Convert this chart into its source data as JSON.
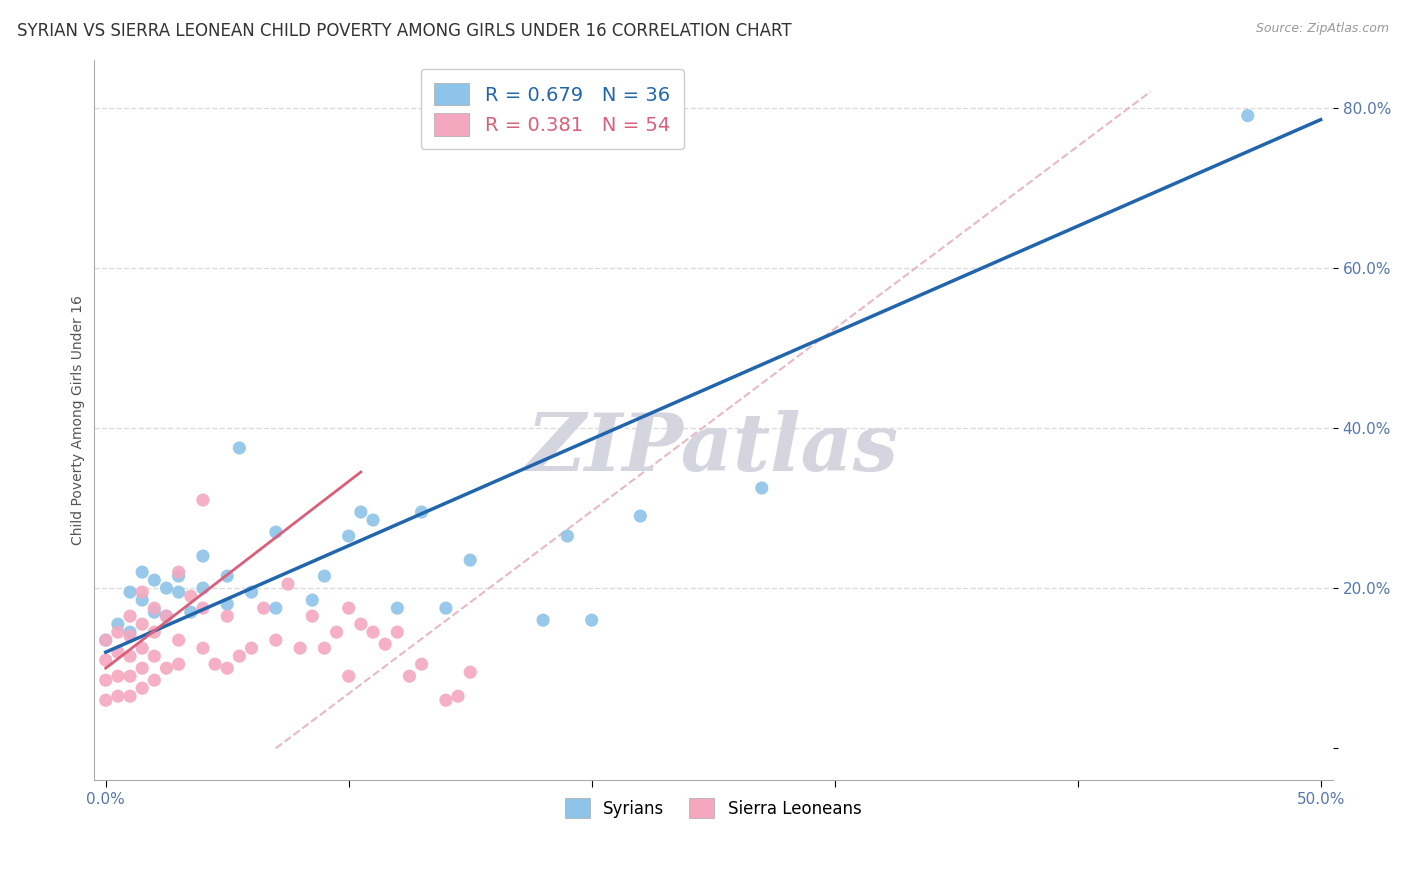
{
  "title": "SYRIAN VS SIERRA LEONEAN CHILD POVERTY AMONG GIRLS UNDER 16 CORRELATION CHART",
  "source": "Source: ZipAtlas.com",
  "ylabel": "Child Poverty Among Girls Under 16",
  "xlabel": "",
  "xlim": [
    -0.005,
    0.505
  ],
  "ylim": [
    -0.04,
    0.86
  ],
  "xticks": [
    0.0,
    0.1,
    0.2,
    0.3,
    0.4,
    0.5
  ],
  "yticks": [
    0.0,
    0.2,
    0.4,
    0.6,
    0.8
  ],
  "ytick_labels": [
    "",
    "20.0%",
    "40.0%",
    "60.0%",
    "80.0%"
  ],
  "xtick_labels": [
    "0.0%",
    "",
    "",
    "",
    "",
    "50.0%"
  ],
  "legend1_label": "R = 0.679   N = 36",
  "legend2_label": "R = 0.381   N = 54",
  "legend_label_syrians": "Syrians",
  "legend_label_sl": "Sierra Leoneans",
  "blue_color": "#8ec4e8",
  "pink_color": "#f4a8c0",
  "blue_line_color": "#2166ac",
  "pink_line_color": "#d9607a",
  "ref_line_color": "#e8b8c8",
  "watermark": "ZIPatlas",
  "watermark_color": "#d5d5e0",
  "background_color": "#ffffff",
  "grid_color": "#cccccc",
  "title_color": "#333333",
  "blue_line_x0": 0.0,
  "blue_line_y0": 0.12,
  "blue_line_x1": 0.5,
  "blue_line_y1": 0.785,
  "pink_line_x0": 0.0,
  "pink_line_y0": 0.1,
  "pink_line_x1": 0.105,
  "pink_line_y1": 0.345,
  "ref_line_x0": 0.07,
  "ref_line_y0": 0.0,
  "ref_line_x1": 0.43,
  "ref_line_y1": 0.82,
  "syrians_x": [
    0.0,
    0.005,
    0.01,
    0.01,
    0.015,
    0.015,
    0.02,
    0.02,
    0.025,
    0.025,
    0.03,
    0.03,
    0.035,
    0.04,
    0.04,
    0.05,
    0.05,
    0.055,
    0.06,
    0.07,
    0.07,
    0.085,
    0.09,
    0.1,
    0.105,
    0.11,
    0.12,
    0.13,
    0.14,
    0.15,
    0.18,
    0.19,
    0.2,
    0.22,
    0.27,
    0.47
  ],
  "syrians_y": [
    0.135,
    0.155,
    0.145,
    0.195,
    0.185,
    0.22,
    0.17,
    0.21,
    0.165,
    0.2,
    0.195,
    0.215,
    0.17,
    0.2,
    0.24,
    0.18,
    0.215,
    0.375,
    0.195,
    0.175,
    0.27,
    0.185,
    0.215,
    0.265,
    0.295,
    0.285,
    0.175,
    0.295,
    0.175,
    0.235,
    0.16,
    0.265,
    0.16,
    0.29,
    0.325,
    0.79
  ],
  "sl_x": [
    0.0,
    0.0,
    0.0,
    0.0,
    0.005,
    0.005,
    0.005,
    0.005,
    0.01,
    0.01,
    0.01,
    0.01,
    0.01,
    0.015,
    0.015,
    0.015,
    0.015,
    0.015,
    0.02,
    0.02,
    0.02,
    0.02,
    0.025,
    0.025,
    0.03,
    0.03,
    0.03,
    0.035,
    0.04,
    0.04,
    0.04,
    0.045,
    0.05,
    0.05,
    0.055,
    0.06,
    0.065,
    0.07,
    0.075,
    0.08,
    0.085,
    0.09,
    0.095,
    0.1,
    0.1,
    0.105,
    0.11,
    0.115,
    0.12,
    0.125,
    0.13,
    0.14,
    0.145,
    0.15
  ],
  "sl_y": [
    0.06,
    0.085,
    0.11,
    0.135,
    0.065,
    0.09,
    0.12,
    0.145,
    0.065,
    0.09,
    0.115,
    0.14,
    0.165,
    0.075,
    0.1,
    0.125,
    0.155,
    0.195,
    0.085,
    0.115,
    0.145,
    0.175,
    0.1,
    0.165,
    0.105,
    0.135,
    0.22,
    0.19,
    0.125,
    0.175,
    0.31,
    0.105,
    0.1,
    0.165,
    0.115,
    0.125,
    0.175,
    0.135,
    0.205,
    0.125,
    0.165,
    0.125,
    0.145,
    0.09,
    0.175,
    0.155,
    0.145,
    0.13,
    0.145,
    0.09,
    0.105,
    0.06,
    0.065,
    0.095
  ],
  "title_fontsize": 12,
  "axis_fontsize": 10,
  "tick_fontsize": 11
}
